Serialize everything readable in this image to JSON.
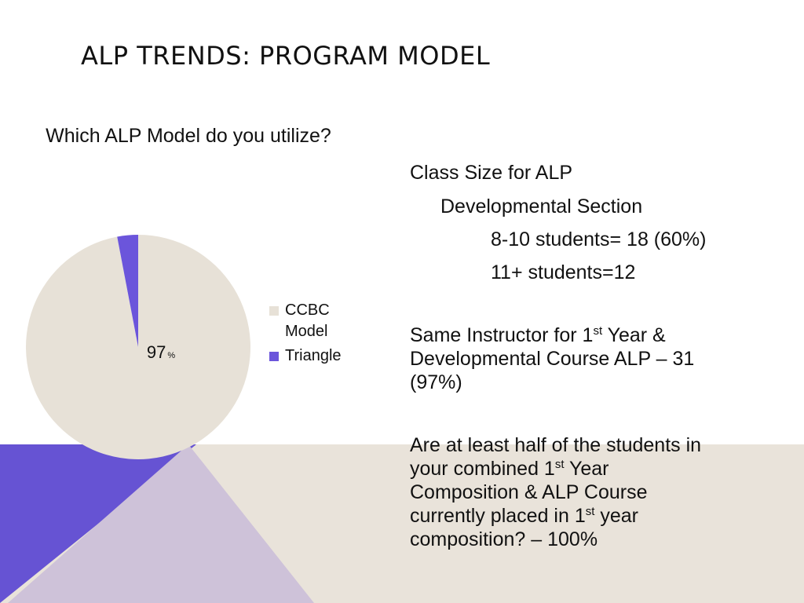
{
  "slide": {
    "title": "ALP TRENDS: PROGRAM MODEL",
    "colors": {
      "beige": "#E9E3DA",
      "purple": "#6653D3",
      "lavender": "#CEC2D9",
      "pie_ccbc": "#E7E1D7",
      "pie_triangle": "#6B55DB"
    }
  },
  "chart_data": {
    "type": "pie",
    "title": "Which ALP Model do you utilize?",
    "slices": [
      {
        "label": "CCBC Model",
        "value": 97,
        "data_label": "97",
        "data_label_unit": "%",
        "color": "#E7E1D7"
      },
      {
        "label": "Triangle",
        "value": 3,
        "color": "#6B55DB"
      }
    ],
    "legend_position": "right"
  },
  "stats": {
    "class_size_heading_1": "Class Size for ALP",
    "class_size_heading_2": "Developmental Section",
    "class_size_line_1": "8-10 students= 18 (60%)",
    "class_size_line_2": "11+ students=12",
    "same_instructor_a": "Same Instructor for 1",
    "same_instructor_sup": "st",
    "same_instructor_b": " Year &",
    "same_instructor_line2": "Developmental Course ALP",
    "same_instructor_value_a": " – 31",
    "same_instructor_value_b": "(97%)",
    "half_line1": "Are at least half of the students in",
    "half_line2a": "your combined 1",
    "half_line2_sup": "st",
    "half_line2b": " Year",
    "half_line3": "Composition & ALP Course",
    "half_line4a": "currently placed in 1",
    "half_line4_sup": "st",
    "half_line4b": " year",
    "half_line5": "composition?",
    "half_value": " – 100%"
  }
}
